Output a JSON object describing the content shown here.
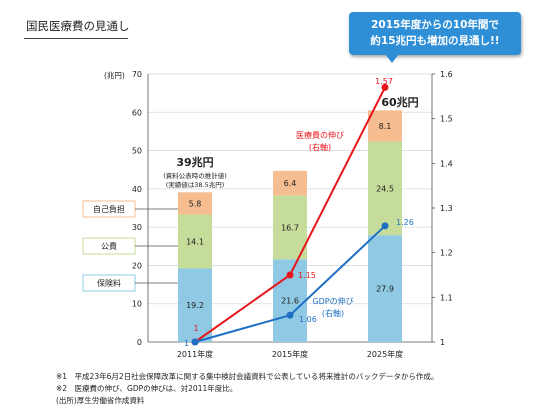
{
  "page": {
    "title": "国民医療費の見通し"
  },
  "callout": {
    "line1": "2015年度からの10年間で",
    "line2": "約15兆円も増加の見通し!!"
  },
  "footnotes": [
    "※1　平成23年6月2日社会保障改革に関する集中検討会議資料で公表している将来推計のバックデータから作成。",
    "※2　医療費の伸び、GDPの伸びは、対2011年度比。",
    "(出所)厚生労働省作成資料"
  ],
  "colors": {
    "insurance": "#8fc9e3",
    "public": "#c6dc9a",
    "self": "#f5bd90",
    "medical_line": "#e8161c",
    "gdp_line": "#1f6fc4",
    "callout": "#2f8fd6"
  },
  "chart_data": {
    "type": "bar",
    "stacked": true,
    "categories": [
      "2011年度",
      "2015年度",
      "2025年度"
    ],
    "left_axis": {
      "unit": "(兆円)",
      "ylim": [
        0,
        70
      ],
      "ticks": [
        0,
        10,
        20,
        30,
        40,
        50,
        60,
        70
      ]
    },
    "right_axis": {
      "ylim": [
        1,
        1.6
      ],
      "ticks": [
        "1",
        "1.1",
        "1.2",
        "1.3",
        "1.4",
        "1.5",
        "1.6"
      ]
    },
    "series": [
      {
        "name": "保険料",
        "values": [
          19.2,
          21.6,
          27.9
        ]
      },
      {
        "name": "公費",
        "values": [
          14.1,
          16.7,
          24.5
        ]
      },
      {
        "name": "自己負担",
        "values": [
          5.8,
          6.4,
          8.1
        ]
      }
    ],
    "totals": [
      {
        "category": "2011年度",
        "label": "39兆円",
        "note1": "(資料公表時の推計値)",
        "note2": "(実績値は38.5兆円)"
      },
      {
        "category": "2025年度",
        "label": "60兆円"
      }
    ],
    "lines": [
      {
        "name": "医療費の伸び",
        "axis_note": "(右軸)",
        "values": [
          1,
          1.15,
          1.57
        ],
        "labels": [
          "1",
          "1.15",
          "1.57"
        ]
      },
      {
        "name": "GDPの伸び",
        "axis_note": "(右軸)",
        "values": [
          1,
          1.06,
          1.26
        ],
        "labels": [
          "1",
          "1.06",
          "1.26"
        ]
      }
    ]
  }
}
